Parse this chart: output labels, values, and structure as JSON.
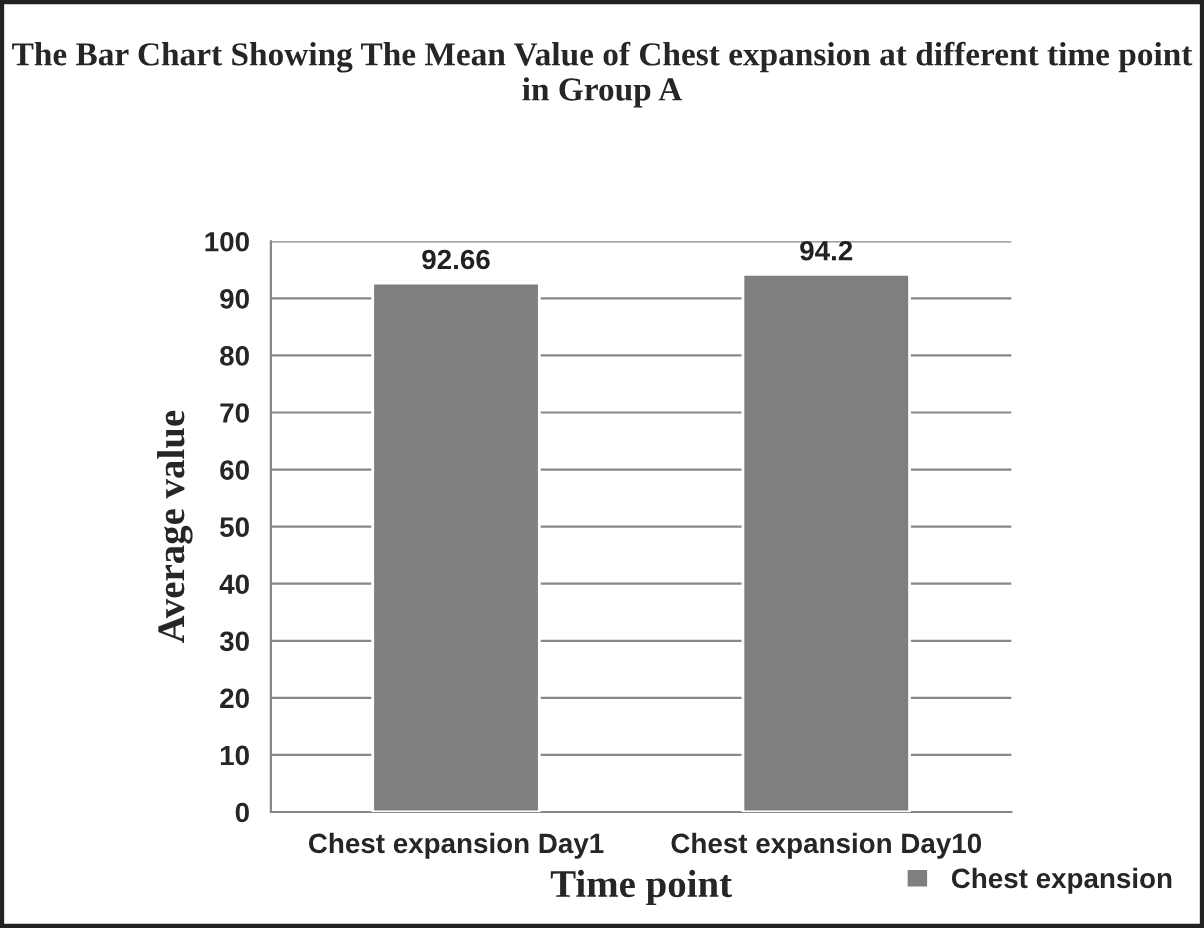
{
  "chart_data": {
    "type": "bar",
    "title": "The Bar Chart Showing The Mean Value of Chest expansion at different time point in Group A",
    "xlabel": "Time point",
    "ylabel": "Average value",
    "categories": [
      "Chest expansion Day1",
      "Chest expansion Day10"
    ],
    "series": [
      {
        "name": "Chest expansion",
        "color": "#7f7f7f",
        "values": [
          92.66,
          94.2
        ]
      }
    ],
    "ylim": [
      0,
      100
    ],
    "yticks": [
      0,
      10,
      20,
      30,
      40,
      50,
      60,
      70,
      80,
      90,
      100
    ],
    "grid": "y",
    "legend": "bottom right",
    "data_labels": true
  }
}
